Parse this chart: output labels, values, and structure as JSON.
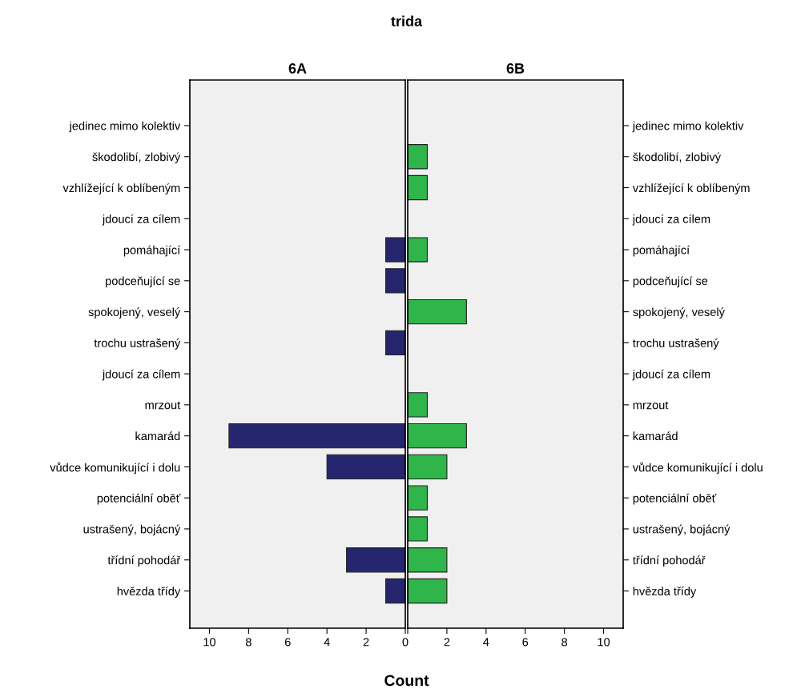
{
  "chart_data": [
    {
      "type": "bar",
      "orientation": "horizontal",
      "title": "6A",
      "xlabel": "Count",
      "annotations": [
        "trida"
      ],
      "categories": [
        "jedinec mimo kolektiv",
        "škodolibí, zlobivý",
        "vzhlížející k oblíbeným",
        "jdoucí za cílem",
        "pomáhající",
        "podceňující se",
        "spokojený, veselý",
        "trochu ustrašený",
        "jdoucí za cílem",
        "mrzout",
        "kamarád",
        "vůdce komunikující i dolu",
        "potenciální oběť",
        "ustrašený, bojácný",
        "třídní pohodář",
        "hvězda třídy"
      ],
      "values": [
        0,
        0,
        0,
        0,
        1,
        1,
        0,
        1,
        0,
        0,
        9,
        4,
        0,
        0,
        3,
        1
      ],
      "color": "#26266e",
      "xlim": [
        11,
        0
      ],
      "xticks": [
        10,
        8,
        6,
        4,
        2,
        0
      ],
      "grid": false
    },
    {
      "type": "bar",
      "orientation": "horizontal",
      "title": "6B",
      "categories": [
        "jedinec mimo kolektiv",
        "škodolibí, zlobivý",
        "vzhlížející k oblíbeným",
        "jdoucí za cílem",
        "pomáhající",
        "podceňující se",
        "spokojený, veselý",
        "trochu ustrašený",
        "jdoucí za cílem",
        "mrzout",
        "kamarád",
        "vůdce komunikující i dolu",
        "potenciální oběť",
        "ustrašený, bojácný",
        "třídní pohodář",
        "hvězda třídy"
      ],
      "values": [
        0,
        1,
        1,
        0,
        1,
        0,
        3,
        0,
        0,
        1,
        3,
        2,
        1,
        1,
        2,
        2
      ],
      "color": "#2fb54a",
      "xlim": [
        0,
        11
      ],
      "xticks": [
        {
          "value": 0,
          "label": null
        },
        2,
        4,
        6,
        8,
        10
      ],
      "grid": false
    }
  ]
}
